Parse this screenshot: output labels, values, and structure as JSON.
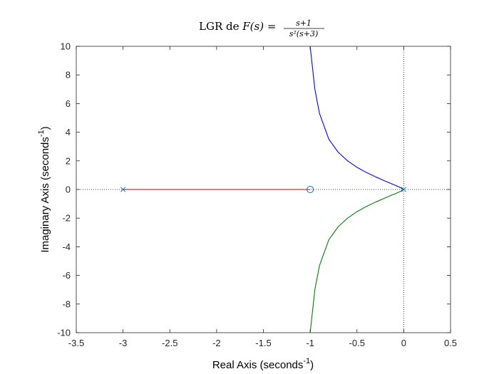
{
  "chart_data": {
    "type": "line",
    "title": {
      "prefix": "LGR de ",
      "func": "F(s) = ",
      "numerator": "s+1",
      "denominator": "s²(s+3)"
    },
    "xlabel": {
      "text": "Real Axis (seconds",
      "sup": "-1",
      "close": ")"
    },
    "ylabel": {
      "text": "Imaginary Axis (seconds",
      "sup": "-1",
      "close": ")"
    },
    "xlim": [
      -3.5,
      0.5
    ],
    "ylim": [
      -10,
      10
    ],
    "xticks": [
      -3.5,
      -3,
      -2.5,
      -2,
      -1.5,
      -1,
      -0.5,
      0,
      0.5
    ],
    "yticks": [
      -10,
      -8,
      -6,
      -4,
      -2,
      0,
      2,
      4,
      6,
      8,
      10
    ],
    "xtick_labels": [
      "-3.5",
      "-3",
      "-2.5",
      "-2",
      "-1.5",
      "-1",
      "-0.5",
      "0",
      "0.5"
    ],
    "ytick_labels": [
      "-10",
      "-8",
      "-6",
      "-4",
      "-2",
      "0",
      "2",
      "4",
      "6",
      "8",
      "10"
    ],
    "grid": false,
    "poles": [
      {
        "x": -3,
        "y": 0
      },
      {
        "x": 0,
        "y": 0
      }
    ],
    "zeros": [
      {
        "x": -1,
        "y": 0
      }
    ],
    "series": [
      {
        "color": "#0000ff",
        "x": [
          0,
          -0.05,
          -0.1,
          -0.2,
          -0.3,
          -0.4,
          -0.5,
          -0.6,
          -0.7,
          -0.8,
          -0.9,
          -0.95,
          -1.0
        ],
        "y": [
          0,
          0.18,
          0.32,
          0.59,
          0.88,
          1.19,
          1.55,
          2.0,
          2.6,
          3.5,
          5.3,
          7.0,
          10
        ]
      },
      {
        "color": "#008000",
        "x": [
          0,
          -0.05,
          -0.1,
          -0.2,
          -0.3,
          -0.4,
          -0.5,
          -0.6,
          -0.7,
          -0.8,
          -0.9,
          -0.95,
          -1.0
        ],
        "y": [
          0,
          -0.18,
          -0.32,
          -0.59,
          -0.88,
          -1.19,
          -1.55,
          -2.0,
          -2.6,
          -3.5,
          -5.3,
          -7.0,
          -10
        ]
      },
      {
        "color": "#c00000",
        "x": [
          -3,
          -1
        ],
        "y": [
          0,
          0
        ]
      }
    ],
    "pole_color": "#0072bd",
    "zero_color": "#0072bd",
    "reference_lines": {
      "vertical_at_x": 0,
      "horizontal_at_y": 0,
      "style": "dotted",
      "color": "#444444"
    }
  }
}
